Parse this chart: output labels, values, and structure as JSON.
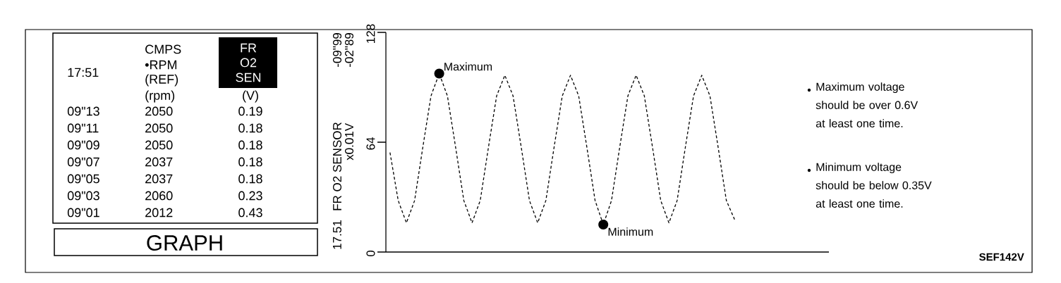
{
  "chart_data": [
    {
      "type": "other",
      "annotations": [
        "17:51",
        "CMPS",
        "•RPM",
        "(REF)",
        "(rpm)",
        "FR",
        "O2",
        "SEN",
        "(V)",
        "09\"13",
        "2050",
        "0.19",
        "09\"11",
        "2050",
        "0.18",
        "09\"09",
        "2050",
        "0.18",
        "09\"07",
        "2037",
        "0.18",
        "09\"05",
        "2037",
        "0.18",
        "09\"03",
        "2060",
        "0.23",
        "09\"01",
        "2012",
        "0.43",
        "GRAPH"
      ]
    },
    {
      "type": "line",
      "ylabel": "FR O2 SENSOR",
      "color": "#000000",
      "line_style": "dashed",
      "categories": [
        null,
        null,
        null,
        null,
        null,
        null,
        null,
        null,
        null,
        null,
        null,
        null,
        null,
        null,
        null,
        null,
        null,
        null,
        null,
        null,
        null,
        null,
        null,
        null,
        null,
        null,
        null,
        null,
        null,
        null,
        null,
        null,
        null,
        null,
        null,
        null,
        null,
        null,
        null,
        null,
        null,
        null,
        null
      ],
      "values": [
        58,
        30,
        17,
        30,
        61,
        91,
        104,
        91,
        61,
        30,
        17,
        30,
        61,
        91,
        103,
        91,
        61,
        30,
        17,
        30,
        61,
        91,
        103,
        91,
        61,
        30,
        16,
        30,
        61,
        91,
        103,
        91,
        61,
        30,
        17,
        30,
        61,
        91,
        103,
        91,
        61,
        30,
        19
      ],
      "ylim": [
        0,
        128
      ],
      "yticks": [
        0,
        64,
        128
      ],
      "annotations": [
        "17.51",
        "-09\"99",
        "x0.01V",
        "-02\"89",
        "Maximum",
        "Minimum",
        "Maximum voltage should be over 0.6V at least one time.",
        "Minimum voltage should be below 0.35V at least one time.",
        "SEF142V"
      ]
    }
  ]
}
